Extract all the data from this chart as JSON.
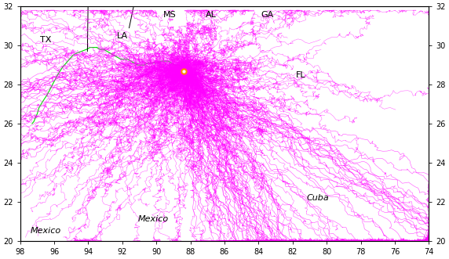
{
  "lon_min": -98,
  "lon_max": -74,
  "lat_min": 20,
  "lat_max": 32,
  "xticks": [
    -98,
    -96,
    -94,
    -92,
    -90,
    -88,
    -86,
    -84,
    -82,
    -80,
    -78,
    -76,
    -74
  ],
  "yticks": [
    20,
    22,
    24,
    26,
    28,
    30,
    32
  ],
  "xlabels": [
    "98",
    "96",
    "94",
    "92",
    "90",
    "88",
    "86",
    "84",
    "82",
    "80",
    "78",
    "76",
    "74"
  ],
  "ylabels": [
    "20",
    "22",
    "24",
    "26",
    "28",
    "30",
    "32"
  ],
  "spill_lon": -88.4,
  "spill_lat": 28.7,
  "coastline_color": "#00dd00",
  "border_color": "#000000",
  "trajectory_color": "#ff00ff",
  "origin_color": "#ff8800",
  "state_labels": [
    {
      "name": "TX",
      "lon": -96.5,
      "lat": 30.3
    },
    {
      "name": "LA",
      "lon": -92.0,
      "lat": 30.5
    },
    {
      "name": "MS",
      "lon": -89.2,
      "lat": 31.55
    },
    {
      "name": "AL",
      "lon": -86.8,
      "lat": 31.55
    },
    {
      "name": "GA",
      "lon": -83.5,
      "lat": 31.55
    },
    {
      "name": "FL",
      "lon": -81.5,
      "lat": 28.5
    }
  ],
  "region_labels": [
    {
      "name": "Mexico",
      "lon": -96.5,
      "lat": 20.5
    },
    {
      "name": "Mexico",
      "lon": -90.2,
      "lat": 21.1
    },
    {
      "name": "Cuba",
      "lon": -80.5,
      "lat": 22.2
    }
  ],
  "figsize": [
    5.72,
    3.31
  ],
  "dpi": 100
}
